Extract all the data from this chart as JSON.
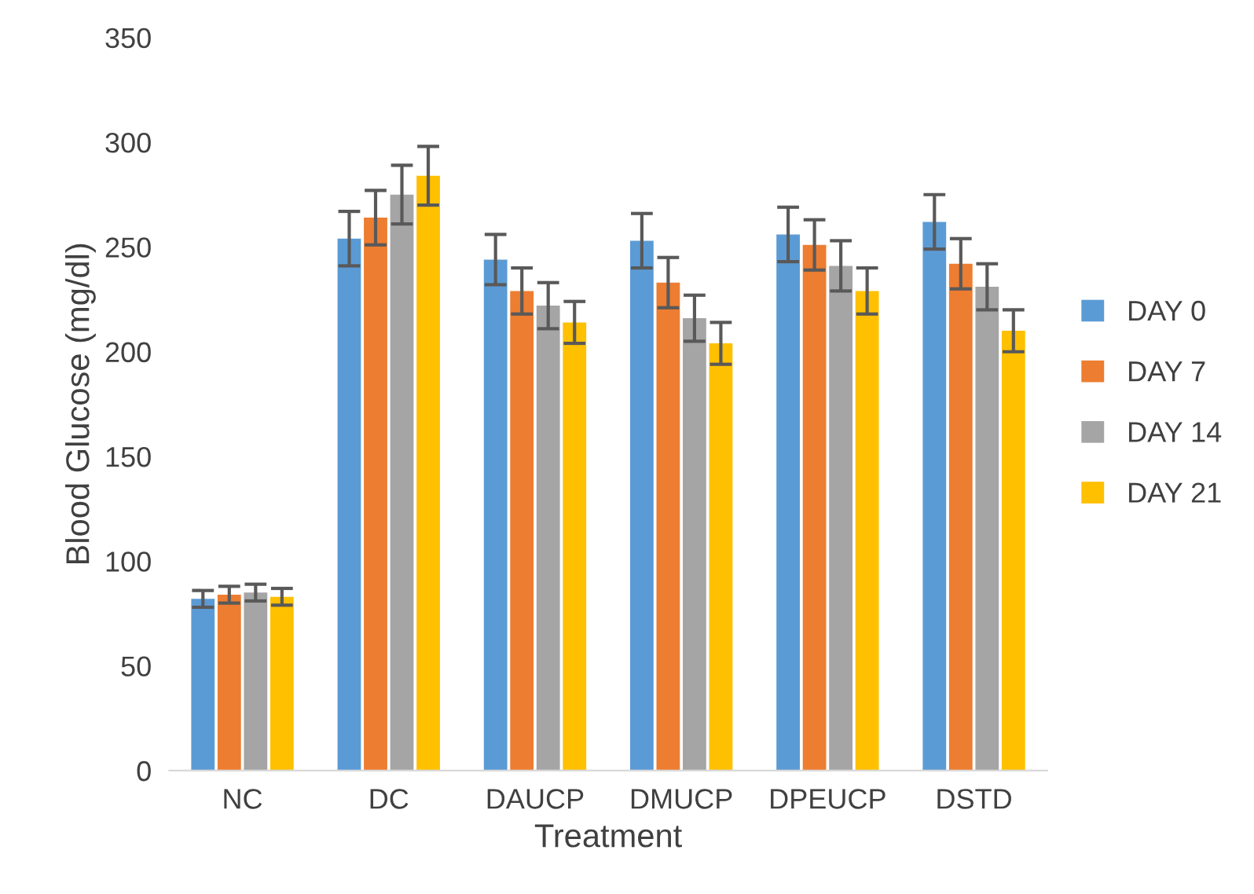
{
  "chart_data": {
    "type": "bar",
    "xlabel": "Treatment",
    "ylabel": "Blood Glucose (mg/dl)",
    "categories": [
      "NC",
      "DC",
      "DAUCP",
      "DMUCP",
      "DPEUCP",
      "DSTD"
    ],
    "series": [
      {
        "name": "DAY 0",
        "color": "#5b9bd5",
        "values": [
          82,
          254,
          244,
          253,
          256,
          262
        ],
        "errors": [
          4,
          13,
          12,
          13,
          13,
          13
        ]
      },
      {
        "name": "DAY 7",
        "color": "#ed7d31",
        "values": [
          84,
          264,
          229,
          233,
          251,
          242
        ],
        "errors": [
          4,
          13,
          11,
          12,
          12,
          12
        ]
      },
      {
        "name": "DAY 14",
        "color": "#a5a5a5",
        "values": [
          85,
          275,
          222,
          216,
          241,
          231
        ],
        "errors": [
          4,
          14,
          11,
          11,
          12,
          11
        ]
      },
      {
        "name": "DAY 21",
        "color": "#ffc000",
        "values": [
          83,
          284,
          214,
          204,
          229,
          210
        ],
        "errors": [
          4,
          14,
          10,
          10,
          11,
          10
        ]
      }
    ],
    "ylim": [
      0,
      350
    ],
    "yticks": [
      0,
      50,
      100,
      150,
      200,
      250,
      300,
      350
    ],
    "grid": false,
    "legend": "right"
  }
}
